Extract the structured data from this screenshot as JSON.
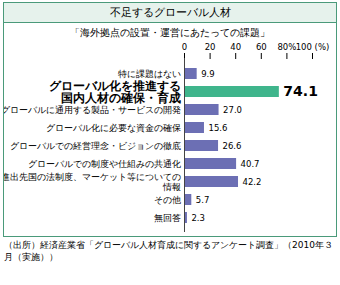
{
  "chart_data": {
    "type": "bar",
    "orientation": "horizontal",
    "title": "不足するグローバル人材",
    "subtitle": "「海外拠点の設置・運営にあたっての課題」",
    "caption": "（出所）経済産業省「グローバル人材育成に関するアンケート調査」（2010年３月（実施））",
    "categories": [
      "特に課題はない",
      "グローバル化を推進する\n国内人材の確保・育成",
      "グローバルに通用する製品・サービスの開発",
      "グローバル化に必要な資金の確保",
      "グローバルでの経営理念・ビジョンの徹底",
      "グローバルでの制度や仕組みの共通化",
      "進出先国の法制度、マーケット等についての\n情報",
      "その他",
      "無回答"
    ],
    "values": [
      9.9,
      74.1,
      27.0,
      15.6,
      26.6,
      40.7,
      42.2,
      5.7,
      2.3
    ],
    "value_labels": [
      "9.9",
      "74.1",
      "27.0",
      "15.6",
      "26.6",
      "40.7",
      "42.2",
      "5.7",
      "2.3"
    ],
    "colors": [
      "#6c6fb4",
      "#3fb58c",
      "#6c6fb4",
      "#6c6fb4",
      "#6c6fb4",
      "#6c6fb4",
      "#6c6fb4",
      "#6c6fb4",
      "#6c6fb4"
    ],
    "xlim": [
      0,
      100
    ],
    "xticks": [
      0,
      20,
      40,
      60,
      {
        "value": 80,
        "label": "80%"
      },
      {
        "value": 100,
        "label": "100 (%)"
      }
    ],
    "data_labels": true,
    "grid": false
  }
}
